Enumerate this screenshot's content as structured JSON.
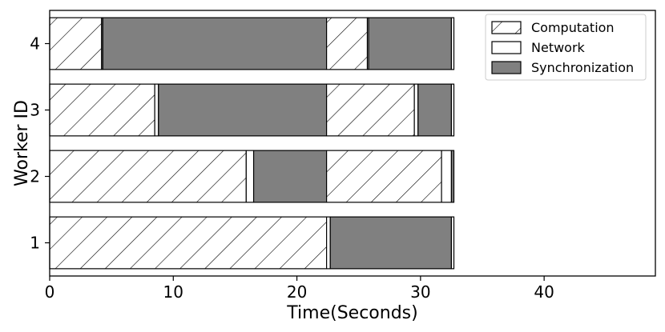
{
  "chart_data": {
    "type": "bar",
    "orientation": "horizontal",
    "stacked": true,
    "xlabel": "Time(Seconds)",
    "ylabel": "Worker ID",
    "xlim": [
      0,
      49
    ],
    "xticks": [
      0,
      10,
      20,
      30,
      40
    ],
    "categories": [
      "1",
      "2",
      "3",
      "4"
    ],
    "legend_position": "top-right",
    "grid": false,
    "legend": [
      {
        "name": "Computation",
        "fill": "hatch"
      },
      {
        "name": "Network",
        "fill": "#ffffff"
      },
      {
        "name": "Synchronization",
        "fill": "#808080"
      }
    ],
    "segments": [
      {
        "worker": "1",
        "kind": "Computation",
        "start": 0,
        "end": 22.4
      },
      {
        "worker": "1",
        "kind": "Network",
        "start": 22.4,
        "end": 22.7
      },
      {
        "worker": "1",
        "kind": "Synchronization",
        "start": 22.7,
        "end": 32.5
      },
      {
        "worker": "1",
        "kind": "Network",
        "start": 32.5,
        "end": 32.7
      },
      {
        "worker": "2",
        "kind": "Computation",
        "start": 0,
        "end": 15.9
      },
      {
        "worker": "2",
        "kind": "Network",
        "start": 15.9,
        "end": 16.5
      },
      {
        "worker": "2",
        "kind": "Synchronization",
        "start": 16.5,
        "end": 22.4
      },
      {
        "worker": "2",
        "kind": "Computation",
        "start": 22.4,
        "end": 31.7
      },
      {
        "worker": "2",
        "kind": "Network",
        "start": 31.7,
        "end": 32.5
      },
      {
        "worker": "2",
        "kind": "Synchronization",
        "start": 32.5,
        "end": 32.7
      },
      {
        "worker": "3",
        "kind": "Computation",
        "start": 0,
        "end": 8.5
      },
      {
        "worker": "3",
        "kind": "Network",
        "start": 8.5,
        "end": 8.8
      },
      {
        "worker": "3",
        "kind": "Synchronization",
        "start": 8.8,
        "end": 22.4
      },
      {
        "worker": "3",
        "kind": "Computation",
        "start": 22.4,
        "end": 29.5
      },
      {
        "worker": "3",
        "kind": "Network",
        "start": 29.5,
        "end": 29.8
      },
      {
        "worker": "3",
        "kind": "Synchronization",
        "start": 29.8,
        "end": 32.5
      },
      {
        "worker": "3",
        "kind": "Network",
        "start": 32.5,
        "end": 32.7
      },
      {
        "worker": "4",
        "kind": "Computation",
        "start": 0,
        "end": 4.2
      },
      {
        "worker": "4",
        "kind": "Network",
        "start": 4.2,
        "end": 4.3
      },
      {
        "worker": "4",
        "kind": "Synchronization",
        "start": 4.3,
        "end": 22.4
      },
      {
        "worker": "4",
        "kind": "Computation",
        "start": 22.4,
        "end": 25.7
      },
      {
        "worker": "4",
        "kind": "Network",
        "start": 25.7,
        "end": 25.8
      },
      {
        "worker": "4",
        "kind": "Synchronization",
        "start": 25.8,
        "end": 32.5
      },
      {
        "worker": "4",
        "kind": "Network",
        "start": 32.5,
        "end": 32.7
      }
    ]
  }
}
